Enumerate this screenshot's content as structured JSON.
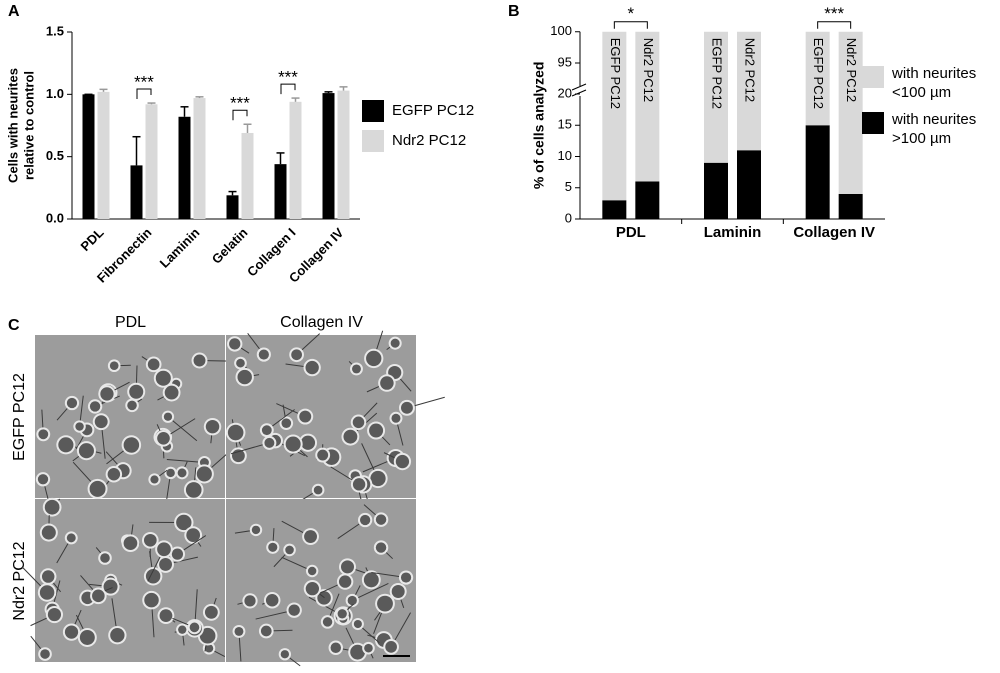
{
  "chart_data": [
    {
      "type": "bar",
      "panel": "A",
      "categories": [
        "PDL",
        "Fibronectin",
        "Laminin",
        "Gelatin",
        "Collagen I",
        "Collagen IV"
      ],
      "series": [
        {
          "name": "EGFP PC12",
          "color": "#000000",
          "values": [
            1.0,
            0.43,
            0.82,
            0.19,
            0.44,
            1.01
          ],
          "errors": [
            0,
            0.23,
            0.08,
            0.03,
            0.09,
            0.01
          ]
        },
        {
          "name": "Ndr2 PC12",
          "color": "#d9d9d9",
          "values": [
            1.02,
            0.92,
            0.97,
            0.69,
            0.94,
            1.03
          ],
          "errors": [
            0.02,
            0.01,
            0.01,
            0.07,
            0.03,
            0.03
          ]
        }
      ],
      "ylabel": [
        "Cells with neurites",
        "relative to control"
      ],
      "ylim": [
        0,
        1.5
      ],
      "yticks": [
        {
          "value": 0,
          "label": "0.0"
        },
        0.5,
        {
          "value": 1,
          "label": "1.0"
        },
        1.5
      ],
      "annotations": [
        {
          "text": "***",
          "category": "Fibronectin"
        },
        {
          "text": "***",
          "category": "Gelatin"
        },
        {
          "text": "***",
          "category": "Collagen I"
        }
      ]
    },
    {
      "type": "stacked_bar",
      "panel": "B",
      "groups": [
        "PDL",
        "Laminin",
        "Collagen IV"
      ],
      "categories": [
        "EGFP PC12",
        "Ndr2 PC12",
        "EGFP PC12",
        "Ndr2 PC12",
        "EGFP PC12",
        "Ndr2 PC12"
      ],
      "series": [
        {
          "name": "with neurites >100 µm",
          "color": "#000000",
          "values": [
            3,
            6,
            9,
            11,
            15,
            4
          ]
        },
        {
          "name": "with neurites <100 µm",
          "color": "#d9d9d9",
          "values": [
            97,
            94,
            91,
            89,
            85,
            96
          ]
        }
      ],
      "ylabel": "% of cells analyzed",
      "ylim": [
        0,
        100
      ],
      "ybreak": [
        20,
        95
      ],
      "yticks": [
        0,
        5,
        10,
        15,
        20,
        95,
        100
      ],
      "annotations": [
        {
          "text": "*",
          "group": "PDL"
        },
        {
          "text": "***",
          "group": "Collagen IV"
        }
      ]
    }
  ],
  "image_panel": {
    "panel": "C",
    "columns": [
      "PDL",
      "Collagen IV"
    ],
    "rows": [
      "EGFP PC12",
      "Ndr2 PC12"
    ]
  }
}
